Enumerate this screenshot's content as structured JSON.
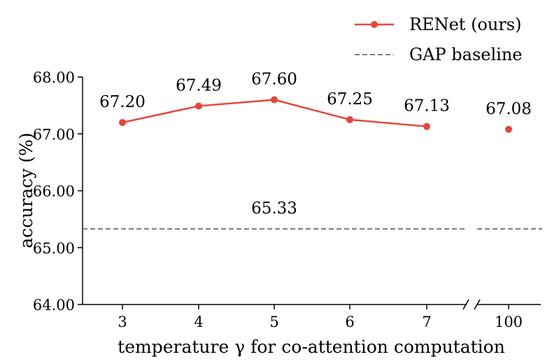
{
  "chart_data": {
    "type": "line",
    "title": "",
    "xlabel": "temperature γ for co-attention computation",
    "ylabel": "accuracy (%)",
    "ylim": [
      64.0,
      68.0
    ],
    "yticks": [
      "64.00",
      "65.00",
      "66.00",
      "67.00",
      "68.00"
    ],
    "categories": [
      "3",
      "4",
      "5",
      "6",
      "7",
      "100"
    ],
    "axis_break_between": [
      "7",
      "100"
    ],
    "series": [
      {
        "name": "RENet (ours)",
        "color": "#e8453a",
        "style": "solid-line-with-markers",
        "values": [
          67.2,
          67.49,
          67.6,
          67.25,
          67.13,
          67.08
        ],
        "labels": [
          "67.20",
          "67.49",
          "67.60",
          "67.25",
          "67.13",
          "67.08"
        ],
        "connected_through_index": 4
      },
      {
        "name": "GAP baseline",
        "color": "#7f7f7f",
        "style": "dashed",
        "value": 65.33,
        "label": "65.33"
      }
    ],
    "legend_position": "top-right"
  }
}
